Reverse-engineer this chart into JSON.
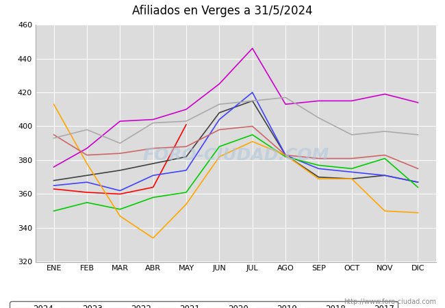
{
  "title": "Afiliados en Verges a 31/5/2024",
  "months": [
    "ENE",
    "FEB",
    "MAR",
    "ABR",
    "MAY",
    "JUN",
    "JUL",
    "AGO",
    "SEP",
    "OCT",
    "NOV",
    "DIC"
  ],
  "ylim": [
    320,
    460
  ],
  "yticks": [
    320,
    340,
    360,
    380,
    400,
    420,
    440,
    460
  ],
  "series": {
    "2024": {
      "color": "#ff0000",
      "values": [
        363,
        361,
        360,
        364,
        401,
        null,
        null,
        null,
        null,
        null,
        null,
        null
      ]
    },
    "2023": {
      "color": "#404040",
      "values": [
        368,
        371,
        374,
        378,
        382,
        408,
        415,
        383,
        370,
        369,
        371,
        367
      ]
    },
    "2022": {
      "color": "#4040ff",
      "values": [
        365,
        367,
        362,
        371,
        374,
        404,
        420,
        383,
        375,
        373,
        371,
        367
      ]
    },
    "2021": {
      "color": "#00cc00",
      "values": [
        350,
        355,
        351,
        358,
        361,
        388,
        395,
        382,
        377,
        375,
        381,
        364
      ]
    },
    "2020": {
      "color": "#ffa500",
      "values": [
        413,
        378,
        347,
        334,
        354,
        382,
        391,
        383,
        369,
        369,
        350,
        349
      ]
    },
    "2019": {
      "color": "#cc00cc",
      "values": [
        376,
        387,
        403,
        404,
        410,
        425,
        446,
        413,
        415,
        415,
        419,
        414
      ]
    },
    "2018": {
      "color": "#cc6666",
      "values": [
        395,
        383,
        384,
        387,
        388,
        398,
        400,
        383,
        381,
        381,
        383,
        375
      ]
    },
    "2017": {
      "color": "#aaaaaa",
      "values": [
        393,
        398,
        390,
        402,
        403,
        413,
        415,
        417,
        405,
        395,
        397,
        395
      ]
    }
  },
  "watermark": "FORO-CIUDAD.COM",
  "url": "http://www.foro-ciudad.com",
  "title_bg_color": "#6fa8dc",
  "plot_bgcolor": "#dcdcdc",
  "grid_color": "#ffffff",
  "fig_bgcolor": "#ffffff"
}
